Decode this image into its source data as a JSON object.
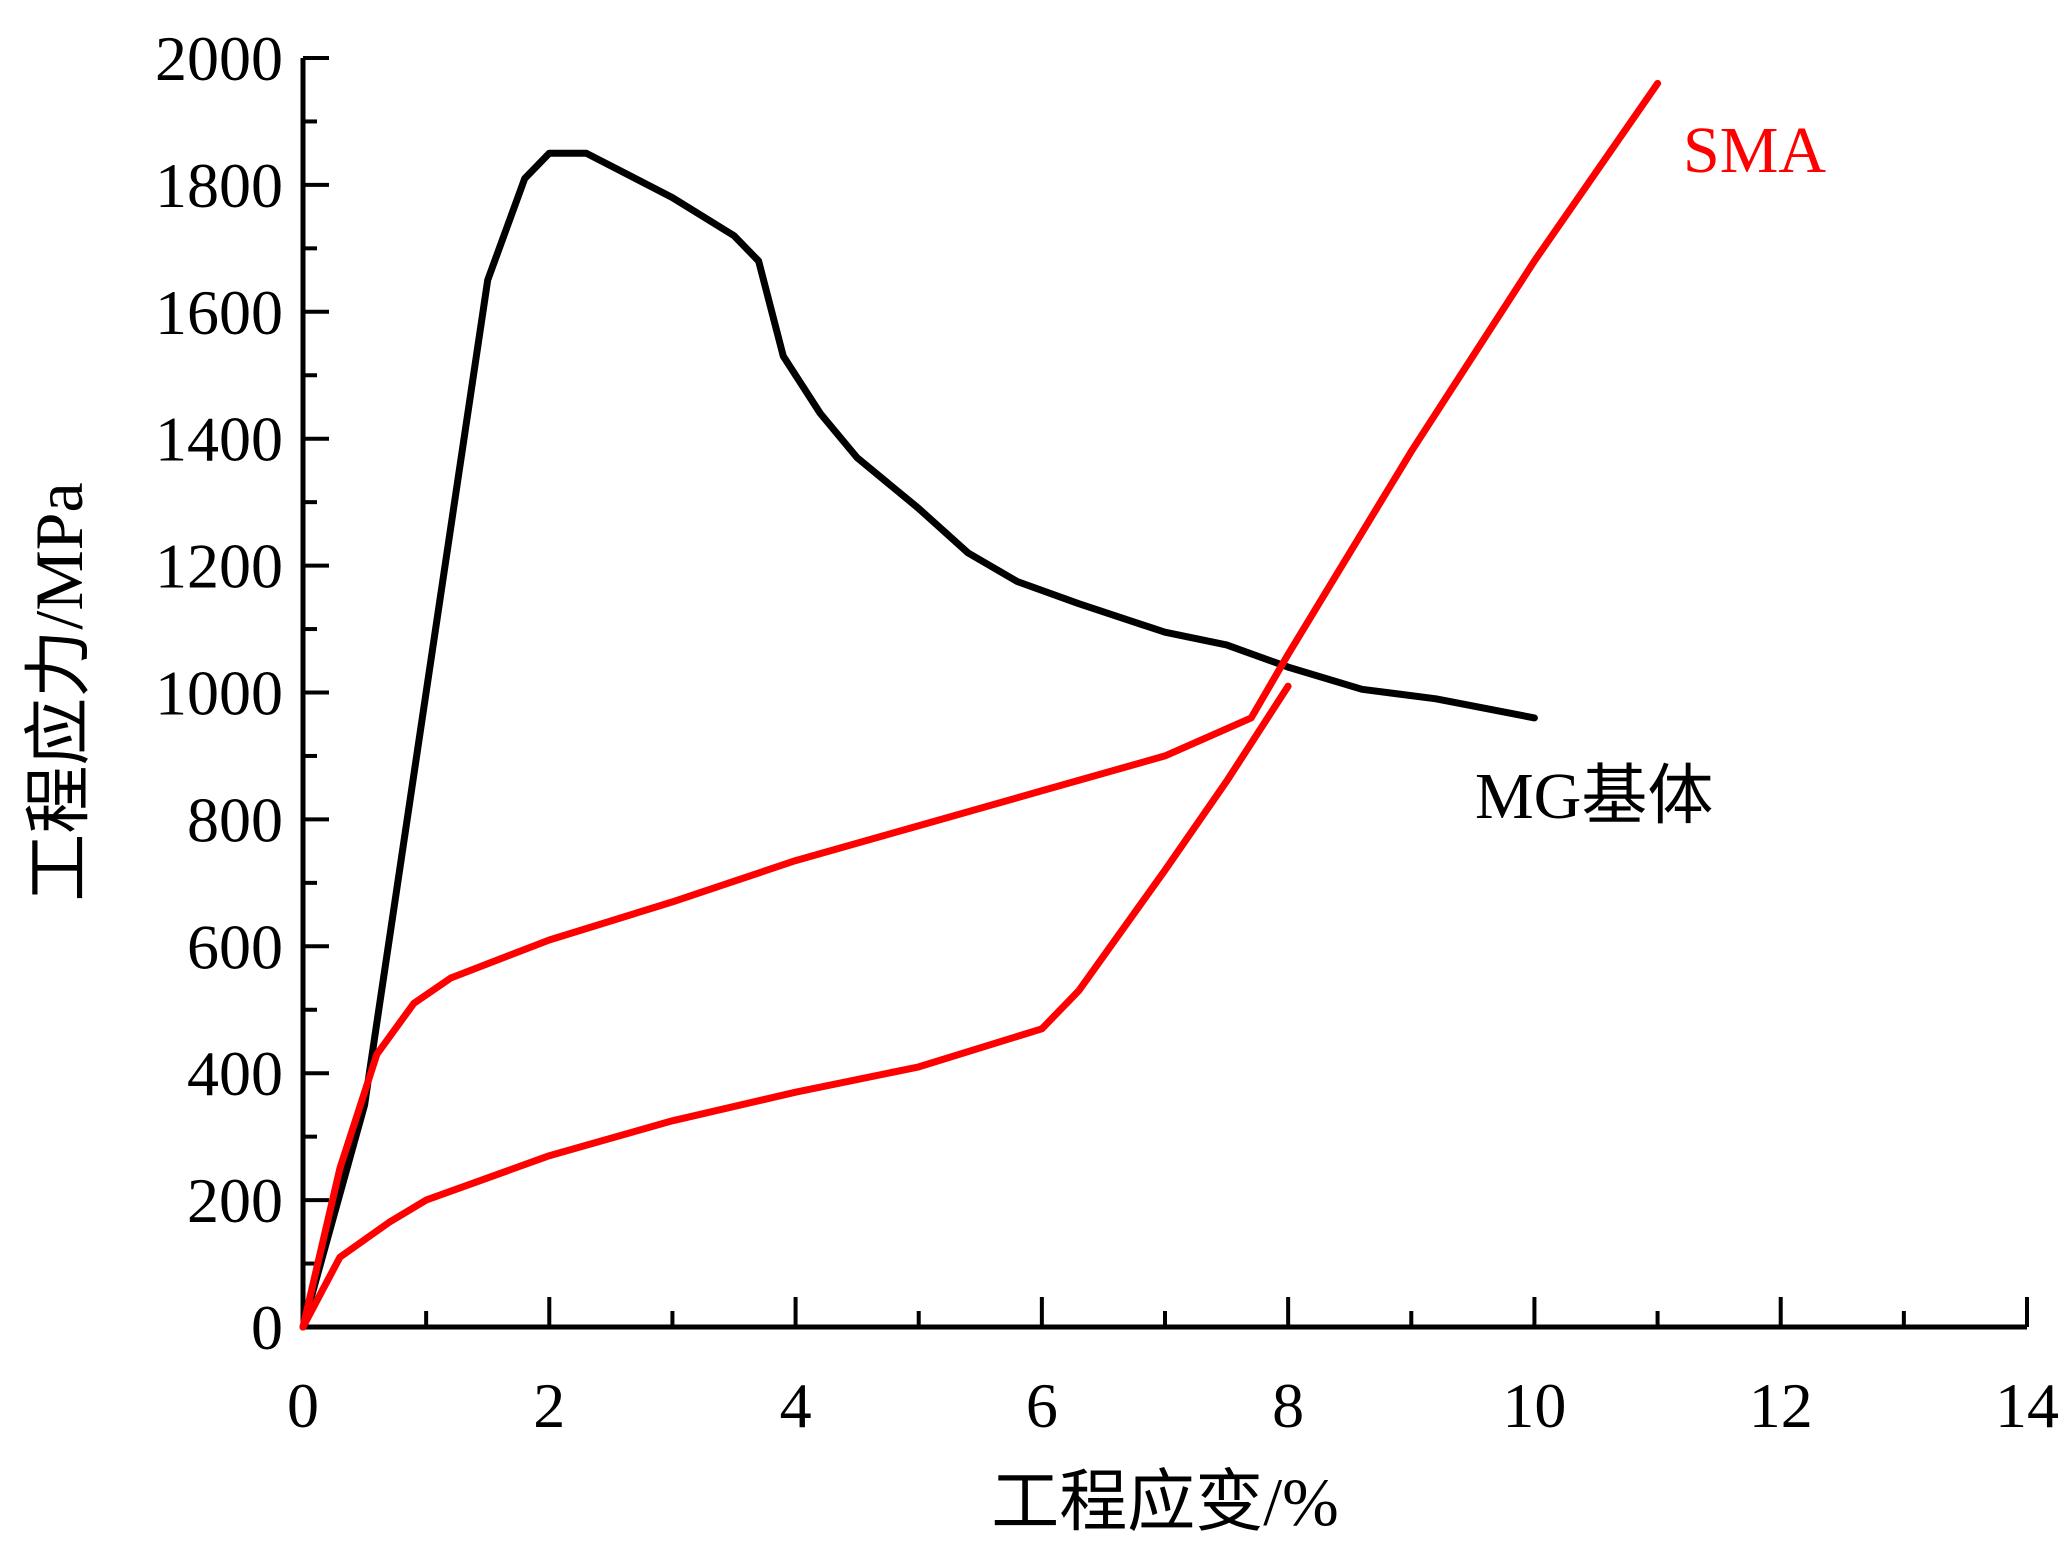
{
  "chart_data": {
    "type": "line",
    "title": "",
    "xlabel": "工程应变/%",
    "ylabel": "工程应力/MPa",
    "xlim": [
      0,
      14
    ],
    "ylim": [
      0,
      2000
    ],
    "xticks": [
      0,
      2,
      4,
      6,
      8,
      10,
      12,
      14
    ],
    "yticks": [
      0,
      200,
      400,
      600,
      800,
      1000,
      1200,
      1400,
      1600,
      1800,
      2000
    ],
    "grid": false,
    "colors": {
      "mg": "#000000",
      "sma": "#ff0000"
    },
    "series": [
      {
        "name": "MG基体",
        "color": "#000000",
        "x": [
          0,
          0.5,
          1,
          1.5,
          1.8,
          2,
          2.3,
          3,
          3.5,
          3.7,
          3.9,
          4.2,
          4.5,
          5,
          5.4,
          5.8,
          6.3,
          7,
          7.5,
          8,
          8.6,
          9.2,
          10
        ],
        "y": [
          0,
          350,
          1000,
          1650,
          1810,
          1850,
          1850,
          1780,
          1720,
          1680,
          1530,
          1440,
          1370,
          1290,
          1220,
          1175,
          1140,
          1095,
          1075,
          1040,
          1005,
          990,
          960
        ]
      },
      {
        "name": "SMA",
        "color": "#ff0000",
        "x": [
          0,
          0.3,
          0.6,
          0.9,
          1.2,
          2,
          3,
          4,
          5,
          6,
          7,
          7.7,
          8,
          9,
          10,
          11
        ],
        "y": [
          0,
          250,
          430,
          510,
          550,
          610,
          670,
          735,
          790,
          845,
          900,
          960,
          1060,
          1380,
          1680,
          1960
        ]
      },
      {
        "name": "SMA",
        "color": "#ff0000",
        "x": [
          0,
          0.3,
          0.7,
          1,
          2,
          3,
          4,
          5,
          6,
          6.3,
          7,
          7.5,
          8
        ],
        "y": [
          0,
          110,
          165,
          200,
          270,
          325,
          370,
          410,
          470,
          530,
          720,
          860,
          1010
        ]
      }
    ],
    "annotations": {
      "sma": "SMA",
      "mg": "MG基体"
    }
  }
}
